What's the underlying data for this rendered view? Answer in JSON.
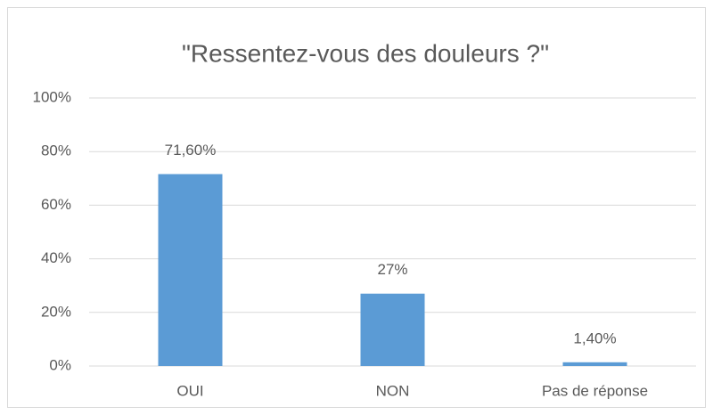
{
  "chart_data": {
    "type": "bar",
    "title": "\"Ressentez-vous des douleurs ?\"",
    "categories": [
      "OUI",
      "NON",
      "Pas de réponse"
    ],
    "values": [
      71.6,
      27,
      1.4
    ],
    "value_labels": [
      "71,60%",
      "27%",
      "1,40%"
    ],
    "color": "#5b9bd5",
    "ylim": [
      0,
      100
    ],
    "yticks": [
      {
        "value": 0,
        "label": "0%"
      },
      {
        "value": 20,
        "label": "20%"
      },
      {
        "value": 40,
        "label": "40%"
      },
      {
        "value": 60,
        "label": "60%"
      },
      {
        "value": 80,
        "label": "80%"
      },
      {
        "value": 100,
        "label": "100%"
      }
    ],
    "grid": true
  }
}
